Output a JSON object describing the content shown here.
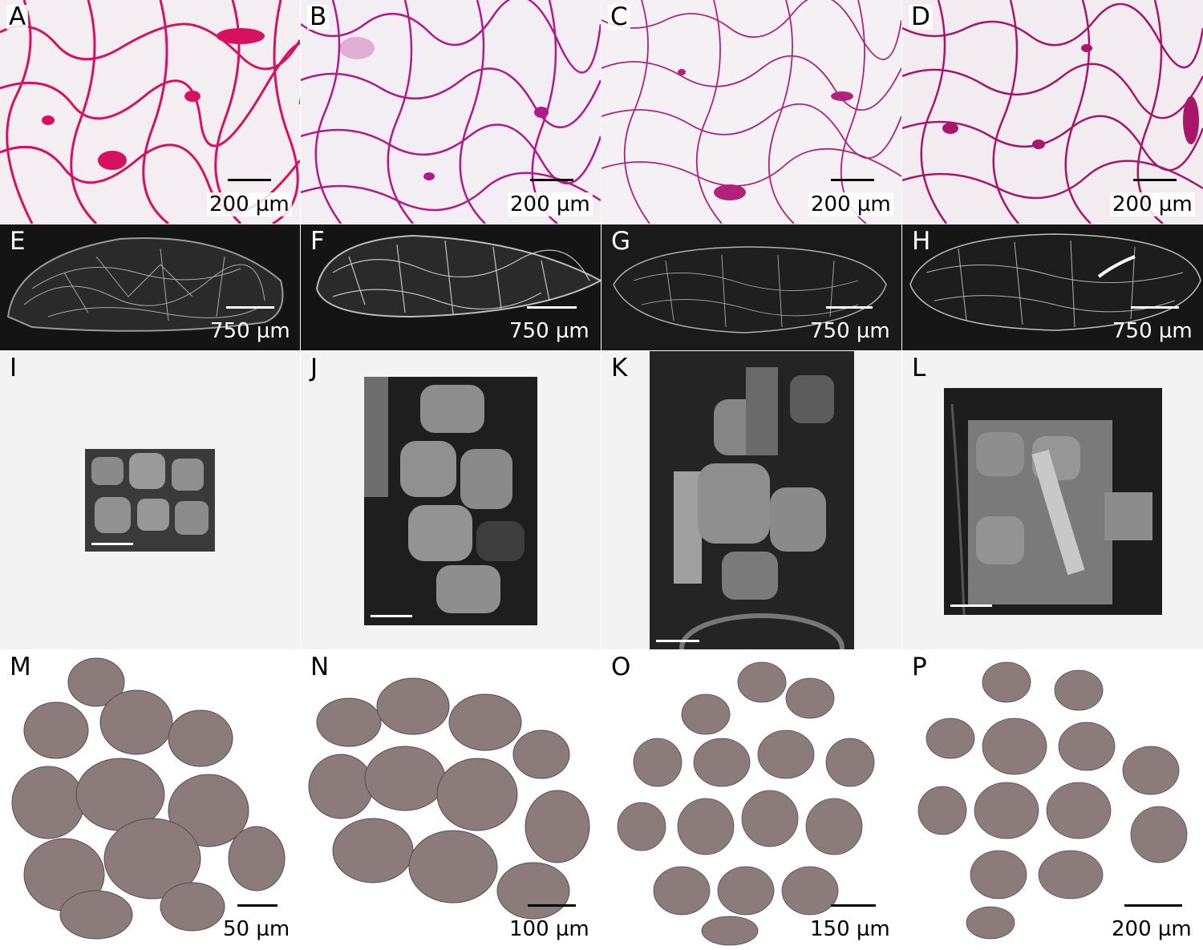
{
  "figure": {
    "row_histology": {
      "panels": [
        {
          "letter": "A",
          "scale_label": "200 µm",
          "stain_color": "#d6125e"
        },
        {
          "letter": "B",
          "scale_label": "200 µm",
          "stain_color": "#b01a8c"
        },
        {
          "letter": "C",
          "scale_label": "200 µm",
          "stain_color": "#b1237a"
        },
        {
          "letter": "D",
          "scale_label": "200 µm",
          "stain_color": "#a8166a"
        }
      ]
    },
    "row_ct_slices": {
      "panels": [
        {
          "letter": "E",
          "scale_label": "750 µm"
        },
        {
          "letter": "F",
          "scale_label": "750 µm"
        },
        {
          "letter": "G",
          "scale_label": "750 µm"
        },
        {
          "letter": "H",
          "scale_label": "750 µm"
        }
      ]
    },
    "row_ct_crops": {
      "panels": [
        {
          "letter": "I"
        },
        {
          "letter": "J"
        },
        {
          "letter": "K"
        },
        {
          "letter": "L"
        }
      ]
    },
    "row_renders": {
      "panels": [
        {
          "letter": "M",
          "scale_label": "50 µm"
        },
        {
          "letter": "N",
          "scale_label": "100 µm"
        },
        {
          "letter": "O",
          "scale_label": "150 µm"
        },
        {
          "letter": "P",
          "scale_label": "200 µm"
        }
      ],
      "surface_color": "#8c7b7b"
    }
  }
}
